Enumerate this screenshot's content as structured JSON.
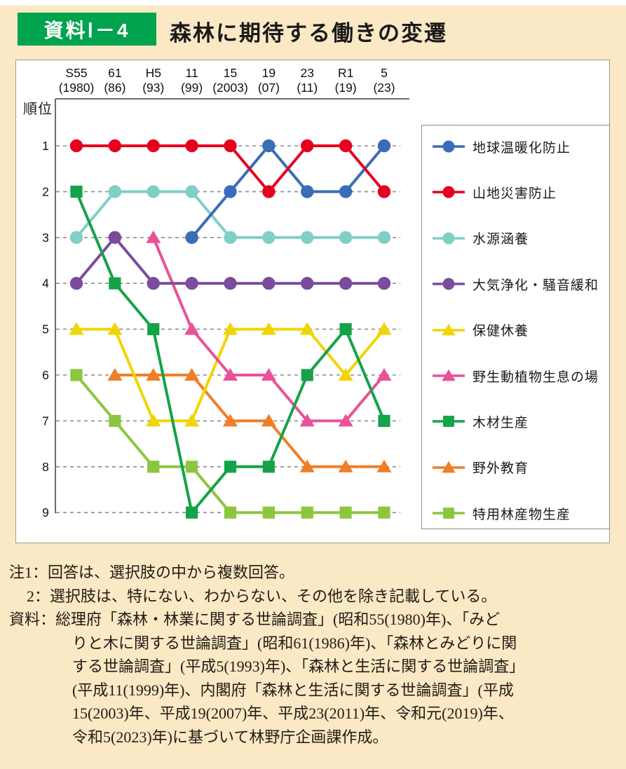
{
  "header": {
    "badge_label": "資料Ⅰ－4",
    "title": "森林に期待する働きの変遷",
    "badge_color": "#00a34e",
    "background_color": "#fbe8c5"
  },
  "chart_data": {
    "type": "line",
    "title": "森林に期待する働きの変遷",
    "ylabel": "順位",
    "ylim": [
      1,
      9
    ],
    "y_inverted": true,
    "grid": "horizontal-dashed",
    "grid_color": "#8c8c8c",
    "legend_position": "right",
    "categories": [
      {
        "era": "S55",
        "west": "(1980)"
      },
      {
        "era": "61",
        "west": "(86)"
      },
      {
        "era": "H5",
        "west": "(93)"
      },
      {
        "era": "11",
        "west": "(99)"
      },
      {
        "era": "15",
        "west": "(2003)"
      },
      {
        "era": "19",
        "west": "(07)"
      },
      {
        "era": "23",
        "west": "(11)"
      },
      {
        "era": "R1",
        "west": "(19)"
      },
      {
        "era": "5",
        "west": "(23)"
      }
    ],
    "series": [
      {
        "id": "global-warming-prevention",
        "name": "地球温暖化防止",
        "color": "#3a6cb7",
        "marker": "circle",
        "values": [
          null,
          null,
          null,
          3,
          2,
          1,
          2,
          2,
          1
        ]
      },
      {
        "id": "mountain-disaster-prevention",
        "name": "山地災害防止",
        "color": "#e60020",
        "marker": "circle",
        "values": [
          1,
          1,
          1,
          1,
          1,
          2,
          1,
          1,
          2
        ]
      },
      {
        "id": "water-source-conservation",
        "name": "水源涵養",
        "color": "#7fcfc7",
        "marker": "circle",
        "values": [
          3,
          2,
          2,
          2,
          3,
          3,
          3,
          3,
          3
        ]
      },
      {
        "id": "air-purification-noise-mitigation",
        "name": "大気浄化・騒音緩和",
        "color": "#7b4b9e",
        "marker": "circle",
        "values": [
          4,
          3,
          4,
          4,
          4,
          4,
          4,
          4,
          4
        ]
      },
      {
        "id": "health-recreation",
        "name": "保健休養",
        "color": "#f0d500",
        "marker": "triangle",
        "values": [
          5,
          5,
          7,
          7,
          5,
          5,
          5,
          6,
          5
        ]
      },
      {
        "id": "wildlife-habitat",
        "name": "野生動植物生息の場",
        "color": "#e85298",
        "marker": "triangle",
        "values": [
          null,
          null,
          3,
          5,
          6,
          6,
          7,
          7,
          6
        ]
      },
      {
        "id": "timber-production",
        "name": "木材生産",
        "color": "#14a348",
        "marker": "square",
        "values": [
          2,
          4,
          5,
          9,
          8,
          8,
          6,
          5,
          7
        ]
      },
      {
        "id": "outdoor-education",
        "name": "野外教育",
        "color": "#f07e26",
        "marker": "triangle",
        "values": [
          null,
          6,
          6,
          6,
          7,
          7,
          8,
          8,
          8
        ]
      },
      {
        "id": "special-forest-products",
        "name": "特用林産物生産",
        "color": "#8cc63f",
        "marker": "square",
        "values": [
          6,
          7,
          8,
          8,
          9,
          9,
          9,
          9,
          9
        ]
      }
    ]
  },
  "notes": {
    "lines": [
      "注1：回答は、選択肢の中から複数回答。",
      "2：選択肢は、特にない、わからない、その他を除き記載している。",
      "資料：総理府「森林・林業に関する世論調査」(昭和55(1980)年)、「みど",
      "りと木に関する世論調査」(昭和61(1986)年)、「森林とみどりに関",
      "する世論調査」(平成5(1993)年)、「森林と生活に関する世論調査」",
      "(平成11(1999)年)、内閣府「森林と生活に関する世論調査」(平成",
      "15(2003)年、平成19(2007)年、平成23(2011)年、令和元(2019)年、",
      "令和5(2023)年)に基づいて林野庁企画課作成。"
    ]
  }
}
